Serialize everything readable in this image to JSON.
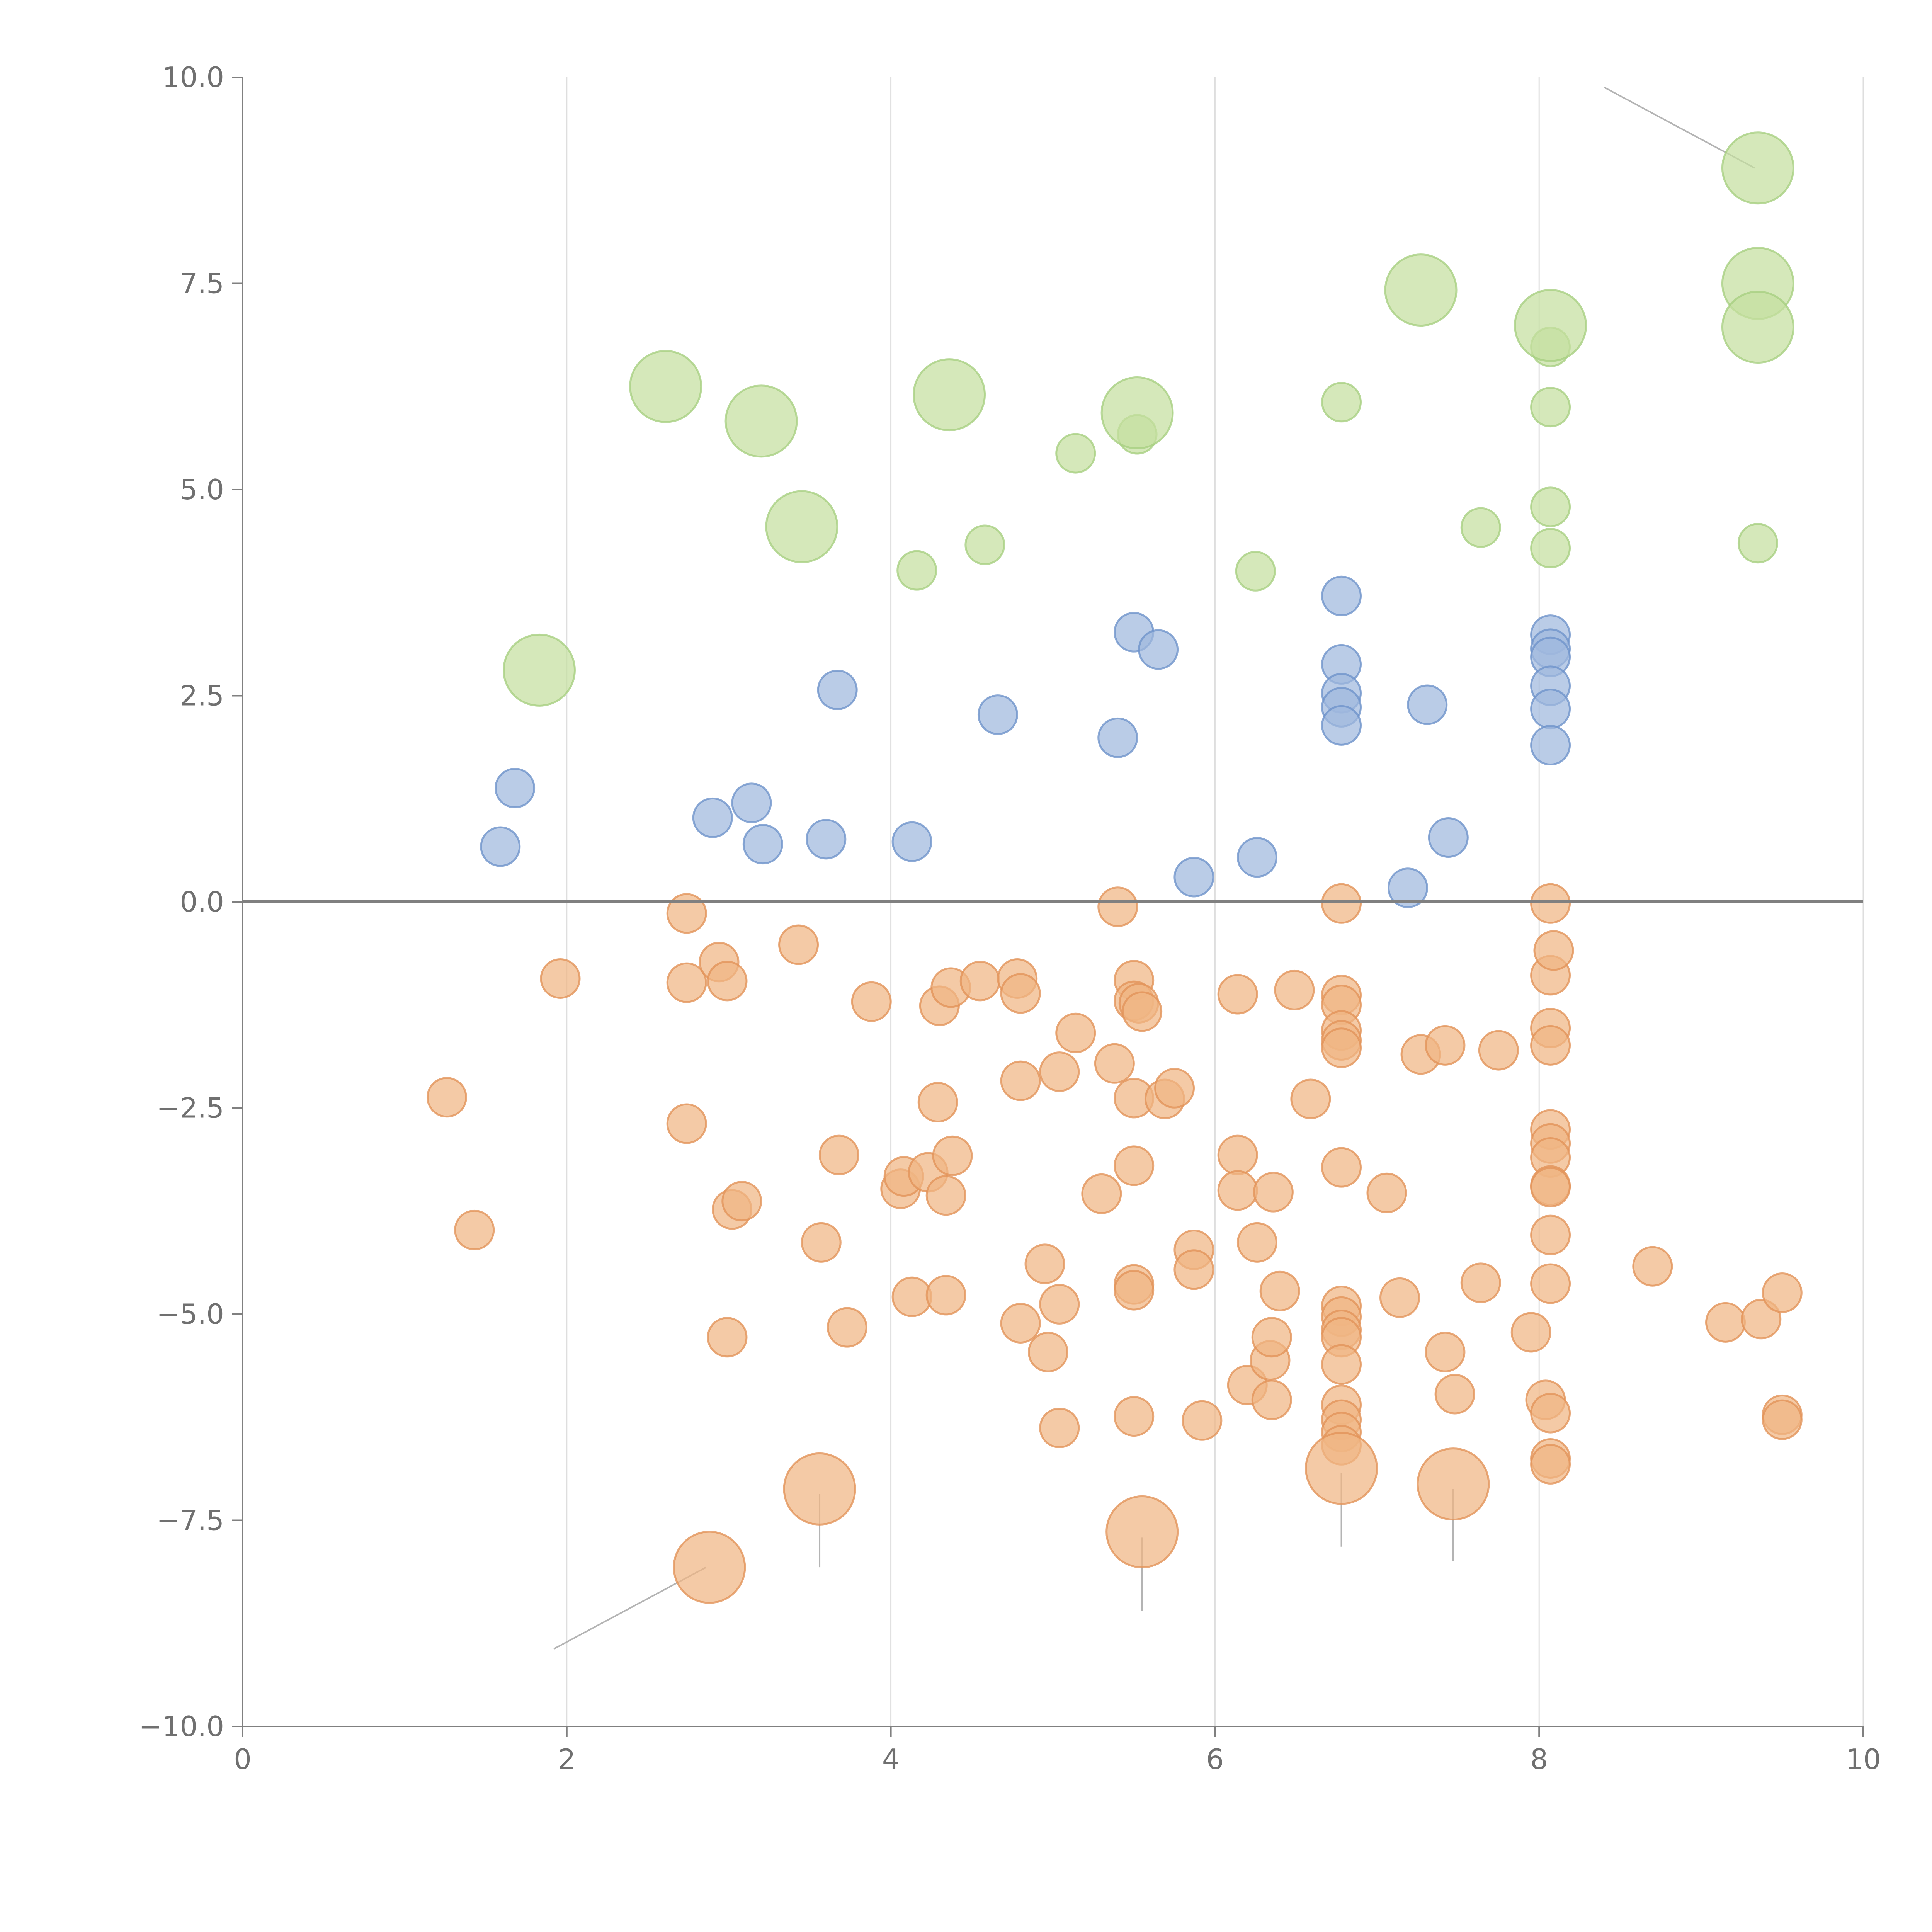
{
  "chart_data": {
    "type": "scatter",
    "title": "",
    "xlabel": "",
    "ylabel": "",
    "xlim": [
      0,
      10
    ],
    "ylim": [
      -10,
      10
    ],
    "grid": "vertical",
    "zero_line": true,
    "x_ticks": [
      0,
      2,
      4,
      6,
      8,
      10
    ],
    "y_ticks": [
      -10,
      -7.5,
      -5,
      -2.5,
      0,
      2.5,
      5,
      7.5,
      10
    ],
    "x_tick_labels": [
      "0",
      "2",
      "4",
      "6",
      "8",
      "10"
    ],
    "y_tick_labels": [
      "−10.0",
      "−7.5",
      "−5.0",
      "−2.5",
      "0.0",
      "2.5",
      "5.0",
      "7.5",
      "10.0"
    ],
    "colors": {
      "orange_fill": "#f0b584",
      "orange_stroke": "#e2935a",
      "blue_fill": "#9fb8de",
      "blue_stroke": "#6f93cb",
      "green_fill": "#c5df9f",
      "green_stroke": "#a8cf82"
    },
    "series": [
      {
        "name": "orange",
        "color": "#f0b584",
        "points": [
          [
            1.26,
            -2.37,
            1
          ],
          [
            1.43,
            -3.98,
            1
          ],
          [
            1.96,
            -0.93,
            1
          ],
          [
            2.74,
            -0.14,
            1
          ],
          [
            2.74,
            -0.98,
            1
          ],
          [
            2.74,
            -2.69,
            1
          ],
          [
            2.94,
            -0.73,
            1
          ],
          [
            2.99,
            -0.96,
            1
          ],
          [
            2.99,
            -5.28,
            1
          ],
          [
            3.02,
            -3.73,
            1
          ],
          [
            3.08,
            -3.63,
            1
          ],
          [
            3.43,
            -0.52,
            1
          ],
          [
            3.57,
            -4.13,
            1
          ],
          [
            3.68,
            -3.07,
            1
          ],
          [
            3.73,
            -5.16,
            1
          ],
          [
            3.88,
            -1.21,
            1
          ],
          [
            4.06,
            -3.48,
            1
          ],
          [
            4.08,
            -3.33,
            1
          ],
          [
            4.13,
            -4.79,
            1
          ],
          [
            4.23,
            -3.28,
            1
          ],
          [
            4.29,
            -2.43,
            1
          ],
          [
            4.3,
            -1.26,
            1
          ],
          [
            4.34,
            -3.56,
            1
          ],
          [
            4.34,
            -4.77,
            1
          ],
          [
            4.37,
            -1.04,
            1
          ],
          [
            4.38,
            -3.08,
            1
          ],
          [
            4.55,
            -0.96,
            1
          ],
          [
            4.78,
            -0.93,
            1
          ],
          [
            4.8,
            -1.11,
            1
          ],
          [
            4.8,
            -2.17,
            1
          ],
          [
            4.8,
            -5.11,
            1
          ],
          [
            4.95,
            -4.39,
            1
          ],
          [
            4.97,
            -5.46,
            1
          ],
          [
            5.04,
            -2.06,
            1
          ],
          [
            5.04,
            -4.88,
            1
          ],
          [
            5.04,
            -6.38,
            1
          ],
          [
            5.14,
            -1.59,
            1
          ],
          [
            5.3,
            -3.54,
            1
          ],
          [
            5.38,
            -1.96,
            1
          ],
          [
            5.4,
            -0.06,
            1
          ],
          [
            5.5,
            -0.95,
            1
          ],
          [
            5.5,
            -1.2,
            1
          ],
          [
            5.5,
            -2.38,
            1
          ],
          [
            5.5,
            -3.2,
            1
          ],
          [
            5.5,
            -4.64,
            1
          ],
          [
            5.5,
            -4.71,
            1
          ],
          [
            5.5,
            -6.24,
            1
          ],
          [
            5.53,
            -1.23,
            1
          ],
          [
            5.55,
            -1.33,
            1
          ],
          [
            5.69,
            -2.39,
            1
          ],
          [
            5.75,
            -2.26,
            1
          ],
          [
            5.87,
            -4.22,
            1
          ],
          [
            5.87,
            -4.46,
            1
          ],
          [
            5.92,
            -6.29,
            1
          ],
          [
            6.14,
            -1.12,
            1
          ],
          [
            6.14,
            -3.07,
            1
          ],
          [
            6.14,
            -3.5,
            1
          ],
          [
            6.2,
            -5.86,
            1
          ],
          [
            6.26,
            -4.13,
            1
          ],
          [
            6.34,
            -5.56,
            1
          ],
          [
            6.35,
            -5.28,
            1
          ],
          [
            6.35,
            -6.04,
            1
          ],
          [
            6.36,
            -3.52,
            1
          ],
          [
            6.4,
            -4.72,
            1
          ],
          [
            6.49,
            -1.07,
            1
          ],
          [
            6.59,
            -2.39,
            1
          ],
          [
            6.78,
            -0.02,
            1
          ],
          [
            6.78,
            -1.13,
            1
          ],
          [
            6.78,
            -1.25,
            1
          ],
          [
            6.78,
            -1.56,
            1
          ],
          [
            6.78,
            -1.68,
            1
          ],
          [
            6.78,
            -1.77,
            1
          ],
          [
            6.78,
            -3.22,
            1
          ],
          [
            6.78,
            -4.9,
            1
          ],
          [
            6.78,
            -5.03,
            1
          ],
          [
            6.78,
            -5.19,
            1
          ],
          [
            6.78,
            -5.28,
            1
          ],
          [
            6.78,
            -5.61,
            1
          ],
          [
            6.78,
            -6.1,
            1
          ],
          [
            6.78,
            -6.28,
            1
          ],
          [
            6.78,
            -6.43,
            1
          ],
          [
            6.78,
            -6.59,
            1
          ],
          [
            7.06,
            -3.53,
            1
          ],
          [
            7.14,
            -4.8,
            1
          ],
          [
            7.27,
            -1.85,
            1
          ],
          [
            7.42,
            -1.74,
            1
          ],
          [
            7.42,
            -5.46,
            1
          ],
          [
            7.48,
            -5.97,
            1
          ],
          [
            7.64,
            -4.62,
            1
          ],
          [
            7.75,
            -1.8,
            1
          ],
          [
            7.95,
            -5.22,
            1
          ],
          [
            8.04,
            -6.04,
            1
          ],
          [
            8.07,
            -0.02,
            1
          ],
          [
            8.07,
            -0.89,
            1
          ],
          [
            8.07,
            -1.53,
            1
          ],
          [
            8.07,
            -1.74,
            1
          ],
          [
            8.07,
            -2.76,
            1
          ],
          [
            8.07,
            -2.93,
            1
          ],
          [
            8.07,
            -3.1,
            1
          ],
          [
            8.07,
            -3.44,
            1
          ],
          [
            8.07,
            -3.46,
            1
          ],
          [
            8.07,
            -4.04,
            1
          ],
          [
            8.07,
            -4.63,
            1
          ],
          [
            8.07,
            -6.2,
            1
          ],
          [
            8.07,
            -6.75,
            1
          ],
          [
            8.07,
            -6.82,
            1
          ],
          [
            8.09,
            -0.59,
            1
          ],
          [
            8.7,
            -4.42,
            1
          ],
          [
            9.15,
            -5.1,
            1
          ],
          [
            9.37,
            -5.06,
            1
          ],
          [
            9.5,
            -4.74,
            1
          ],
          [
            9.5,
            -6.22,
            1
          ],
          [
            9.5,
            -6.28,
            1
          ],
          [
            2.88,
            -8.07,
            2
          ],
          [
            3.56,
            -7.12,
            2
          ],
          [
            5.55,
            -7.64,
            2
          ],
          [
            6.78,
            -6.87,
            2
          ],
          [
            7.47,
            -7.06,
            2
          ]
        ]
      },
      {
        "name": "blue",
        "color": "#9fb8de",
        "points": [
          [
            1.59,
            0.67,
            1
          ],
          [
            1.68,
            1.38,
            1
          ],
          [
            2.9,
            1.02,
            1
          ],
          [
            3.14,
            1.2,
            1
          ],
          [
            3.21,
            0.7,
            1
          ],
          [
            3.6,
            0.76,
            1
          ],
          [
            3.67,
            2.57,
            1
          ],
          [
            4.13,
            0.73,
            1
          ],
          [
            4.66,
            2.27,
            1
          ],
          [
            5.4,
            1.99,
            1
          ],
          [
            5.5,
            3.27,
            1
          ],
          [
            5.65,
            3.06,
            1
          ],
          [
            5.87,
            0.3,
            1
          ],
          [
            6.26,
            0.54,
            1
          ],
          [
            6.78,
            3.71,
            1
          ],
          [
            6.78,
            2.88,
            1
          ],
          [
            6.78,
            2.53,
            1
          ],
          [
            6.78,
            2.36,
            1
          ],
          [
            6.78,
            2.14,
            1
          ],
          [
            7.19,
            0.17,
            1
          ],
          [
            7.31,
            2.39,
            1
          ],
          [
            7.44,
            0.78,
            1
          ],
          [
            8.07,
            3.24,
            1
          ],
          [
            8.07,
            3.07,
            1
          ],
          [
            8.07,
            2.97,
            1
          ],
          [
            8.07,
            2.62,
            1
          ],
          [
            8.07,
            2.34,
            1
          ],
          [
            8.07,
            1.9,
            1
          ]
        ]
      },
      {
        "name": "green",
        "color": "#c5df9f",
        "points": [
          [
            4.16,
            4.02,
            1
          ],
          [
            4.58,
            4.33,
            1
          ],
          [
            5.14,
            5.44,
            1
          ],
          [
            5.52,
            5.67,
            1
          ],
          [
            6.25,
            4.01,
            1
          ],
          [
            6.78,
            6.06,
            1
          ],
          [
            7.64,
            4.54,
            1
          ],
          [
            8.07,
            6.73,
            1
          ],
          [
            8.07,
            6.0,
            1
          ],
          [
            8.07,
            4.79,
            1
          ],
          [
            8.07,
            4.29,
            1
          ],
          [
            9.35,
            4.35,
            1
          ],
          [
            1.83,
            2.81,
            2
          ],
          [
            2.61,
            6.25,
            2
          ],
          [
            3.2,
            5.83,
            2
          ],
          [
            3.45,
            4.55,
            2
          ],
          [
            4.36,
            6.15,
            2
          ],
          [
            5.52,
            5.93,
            2
          ],
          [
            7.27,
            7.42,
            2
          ],
          [
            8.07,
            6.99,
            2
          ],
          [
            9.35,
            8.9,
            2
          ],
          [
            9.35,
            7.5,
            2
          ],
          [
            9.35,
            6.97,
            2
          ]
        ]
      }
    ]
  }
}
